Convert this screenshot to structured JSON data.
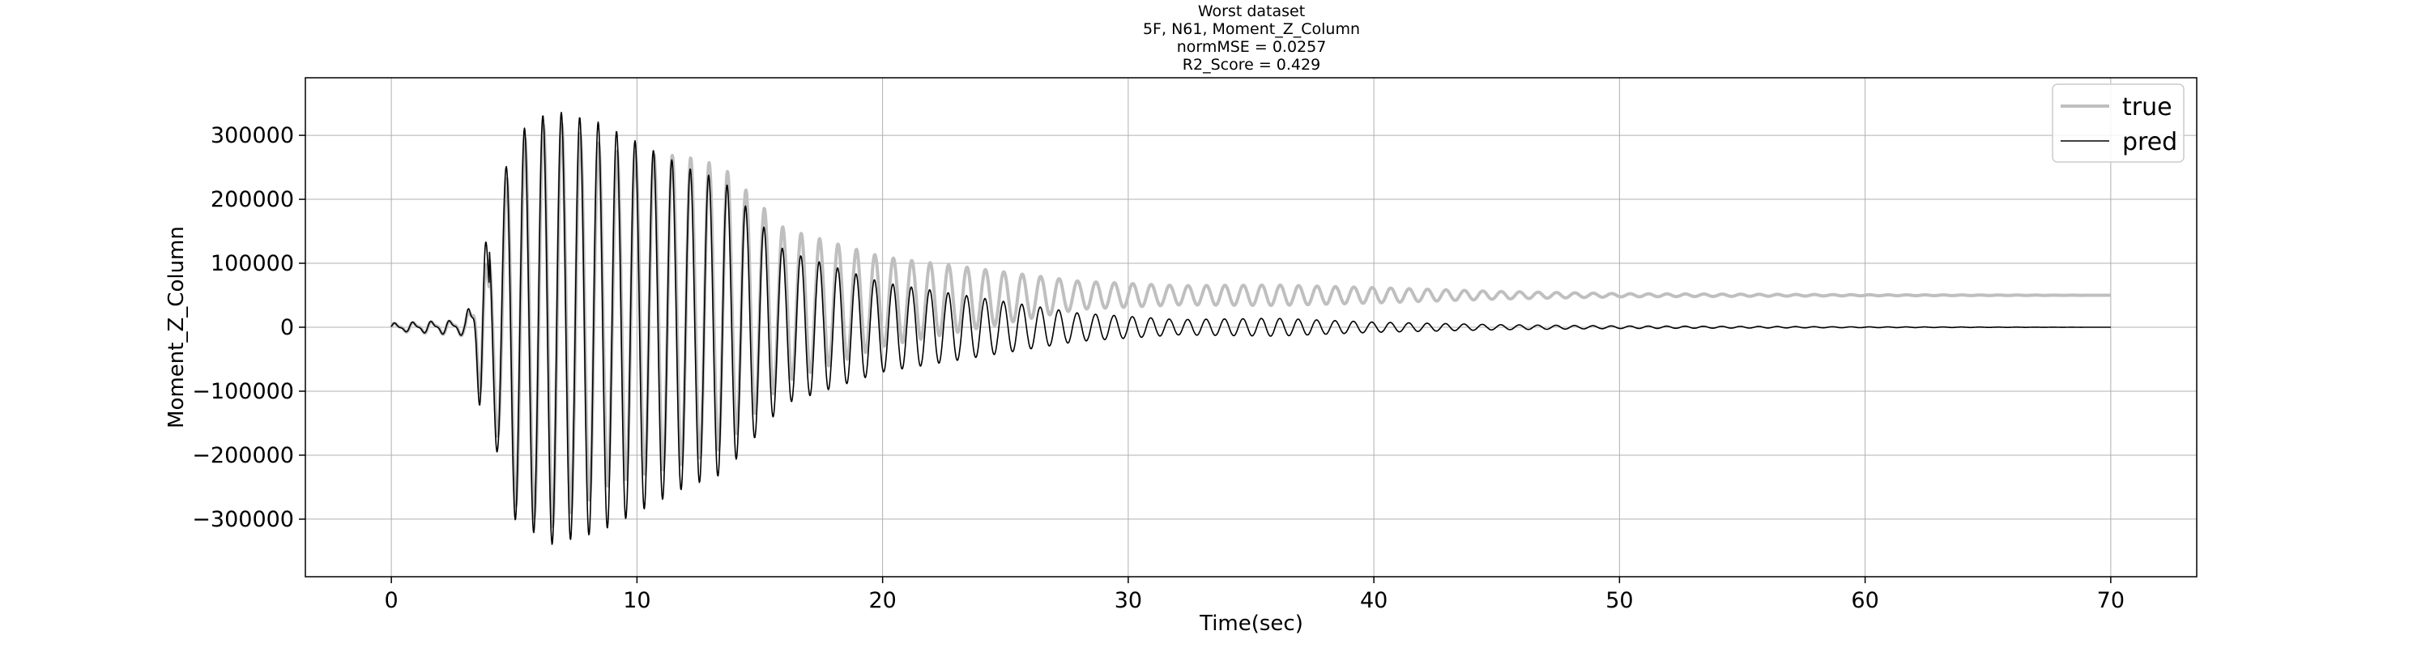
{
  "chart_data": {
    "type": "line",
    "title_lines": [
      "Worst dataset",
      "5F, N61, Moment_Z_Column",
      "normMSE = 0.0257",
      "R2_Score = 0.429"
    ],
    "xlabel": "Time(sec)",
    "ylabel": "Moment_Z_Column",
    "xlim": [
      -3.5,
      73.5
    ],
    "ylim": [
      -390000,
      390000
    ],
    "xticks": [
      0,
      10,
      20,
      30,
      40,
      50,
      60,
      70
    ],
    "yticks": [
      -300000,
      -200000,
      -100000,
      0,
      100000,
      200000,
      300000
    ],
    "ytick_labels": [
      "−300000",
      "−200000",
      "−100000",
      "0",
      "100000",
      "200000",
      "300000"
    ],
    "grid": true,
    "legend_position": "top-right",
    "series": [
      {
        "name": "true",
        "color": "#bfbfbf",
        "x_range": [
          0,
          70
        ],
        "dt": 0.02,
        "offset_envelope": [
          [
            0,
            0
          ],
          [
            4,
            0
          ],
          [
            6,
            5000
          ],
          [
            10,
            20000
          ],
          [
            13,
            30000
          ],
          [
            20,
            40000
          ],
          [
            28,
            50000
          ],
          [
            70,
            50000
          ]
        ],
        "amp_envelope": [
          [
            0,
            5000
          ],
          [
            3,
            10000
          ],
          [
            4,
            120000
          ],
          [
            5,
            280000
          ],
          [
            6.5,
            320000
          ],
          [
            9,
            260000
          ],
          [
            12,
            240000
          ],
          [
            13.5,
            220000
          ],
          [
            16,
            120000
          ],
          [
            20,
            70000
          ],
          [
            25,
            40000
          ],
          [
            28,
            22000
          ],
          [
            32,
            15000
          ],
          [
            36,
            16000
          ],
          [
            40,
            12000
          ],
          [
            45,
            6000
          ],
          [
            50,
            2500
          ],
          [
            60,
            800
          ],
          [
            70,
            0
          ]
        ]
      },
      {
        "name": "pred",
        "color": "#000000",
        "x_range": [
          0,
          70
        ],
        "dt": 0.02,
        "offset_envelope": [
          [
            0,
            0
          ],
          [
            70,
            0
          ]
        ],
        "amp_envelope": [
          [
            0,
            5000
          ],
          [
            3,
            10000
          ],
          [
            4,
            150000
          ],
          [
            5,
            300000
          ],
          [
            6.5,
            340000
          ],
          [
            8.5,
            320000
          ],
          [
            12,
            250000
          ],
          [
            13.5,
            230000
          ],
          [
            16,
            120000
          ],
          [
            20,
            70000
          ],
          [
            25,
            40000
          ],
          [
            28,
            22000
          ],
          [
            32,
            12000
          ],
          [
            36,
            14000
          ],
          [
            40,
            8000
          ],
          [
            45,
            4000
          ],
          [
            50,
            2000
          ],
          [
            60,
            600
          ],
          [
            70,
            0
          ]
        ]
      }
    ],
    "oscillation_period_sec": 0.75
  }
}
